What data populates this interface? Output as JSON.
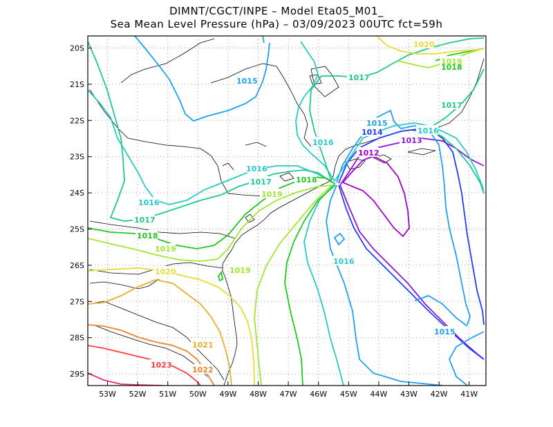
{
  "title_line1": "DIMNT/CGCT/INPE  –   Model Eta05_M01_",
  "title_line2": "Sea Mean Level Pressure (hPa) – 03/09/2023 00UTC fct=59h",
  "lon_ticks": [
    "53W",
    "52W",
    "51W",
    "50W",
    "49W",
    "48W",
    "47W",
    "46W",
    "45W",
    "44W",
    "43W",
    "42W",
    "41W"
  ],
  "lat_ticks": [
    "20S",
    "21S",
    "22S",
    "23S",
    "24S",
    "25S",
    "26S",
    "27S",
    "28S",
    "29S"
  ],
  "colors": {
    "1012": "#a000c8",
    "1013": "#8c14dc",
    "1014": "#1e3cff",
    "1015": "#1ea0f0",
    "1016": "#28c8c8",
    "1017": "#1ec88c",
    "1018": "#1ec81e",
    "1019": "#a0e632",
    "1020": "#e6dc32",
    "1021": "#e6af2d",
    "1022": "#f08228",
    "1023": "#fa3c3c",
    "1024": "#f0287a"
  },
  "contour_labels": [
    {
      "text": "1020",
      "level": "1020"
    },
    {
      "text": "1019",
      "level": "1019"
    },
    {
      "text": "1018",
      "level": "1018"
    },
    {
      "text": "1017",
      "level": "1017"
    },
    {
      "text": "1015",
      "level": "1015"
    },
    {
      "text": "1017",
      "level": "1017"
    },
    {
      "text": "1017",
      "level": "1017"
    },
    {
      "text": "1015",
      "level": "1015"
    },
    {
      "text": "1014",
      "level": "1014"
    },
    {
      "text": "1016",
      "level": "1016"
    },
    {
      "text": "1016",
      "level": "1016"
    },
    {
      "text": "1013",
      "level": "1013"
    },
    {
      "text": "1012",
      "level": "1012"
    },
    {
      "text": "1016",
      "level": "1016"
    },
    {
      "text": "1017",
      "level": "1017"
    },
    {
      "text": "1018",
      "level": "1018"
    },
    {
      "text": "1019",
      "level": "1019"
    },
    {
      "text": "1016",
      "level": "1016"
    },
    {
      "text": "1017",
      "level": "1017"
    },
    {
      "text": "1018",
      "level": "1018"
    },
    {
      "text": "1019",
      "level": "1019"
    },
    {
      "text": "1020",
      "level": "1020"
    },
    {
      "text": "1019",
      "level": "1019"
    },
    {
      "text": "1016",
      "level": "1016"
    },
    {
      "text": "1015",
      "level": "1015"
    },
    {
      "text": "1021",
      "level": "1021"
    },
    {
      "text": "1022",
      "level": "1022"
    },
    {
      "text": "1023",
      "level": "1023"
    }
  ]
}
